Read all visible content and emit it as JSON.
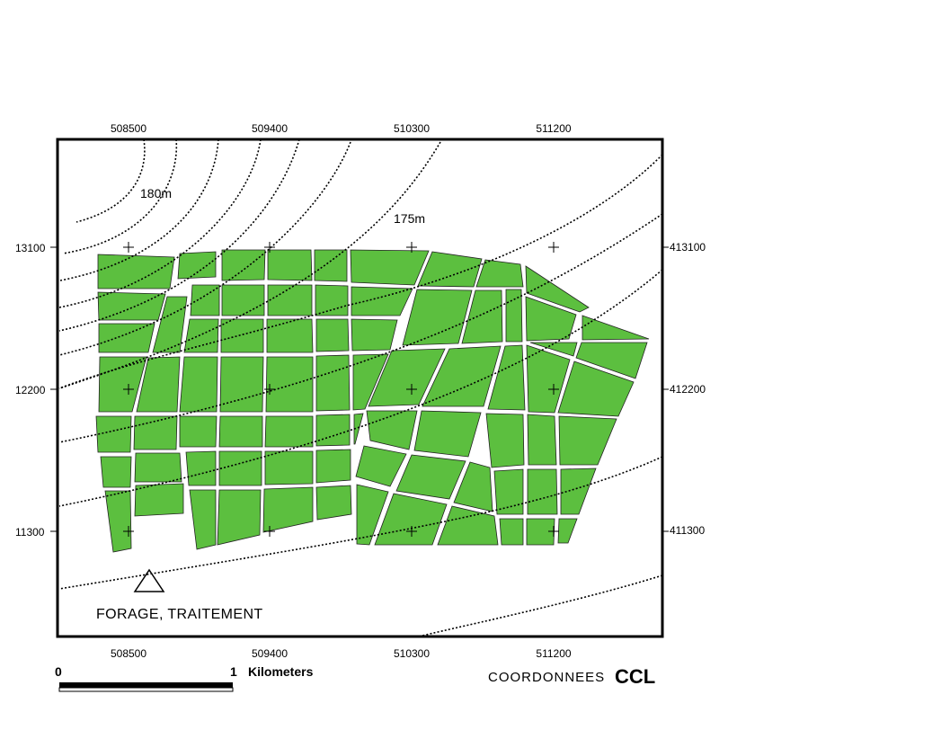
{
  "axes": {
    "top_ticks": [
      "508500",
      "509400",
      "510300",
      "511200"
    ],
    "bottom_ticks": [
      "508500",
      "509400",
      "510300",
      "511200"
    ],
    "left_ticks": [
      "13100",
      "12200",
      "11300"
    ],
    "right_ticks": [
      "413100",
      "412200",
      "411300"
    ]
  },
  "contour_labels": [
    "180m",
    "175m"
  ],
  "site_label": "FORAGE, TRAITEMENT",
  "scale_bar": {
    "start": "0",
    "end": "1",
    "unit": "Kilometers"
  },
  "coord_system": {
    "label": "COORDONNEES",
    "name": "CCL"
  },
  "colors": {
    "plot_fill": "#5cbf3f",
    "road": "#ffffff",
    "frame": "#000000"
  }
}
